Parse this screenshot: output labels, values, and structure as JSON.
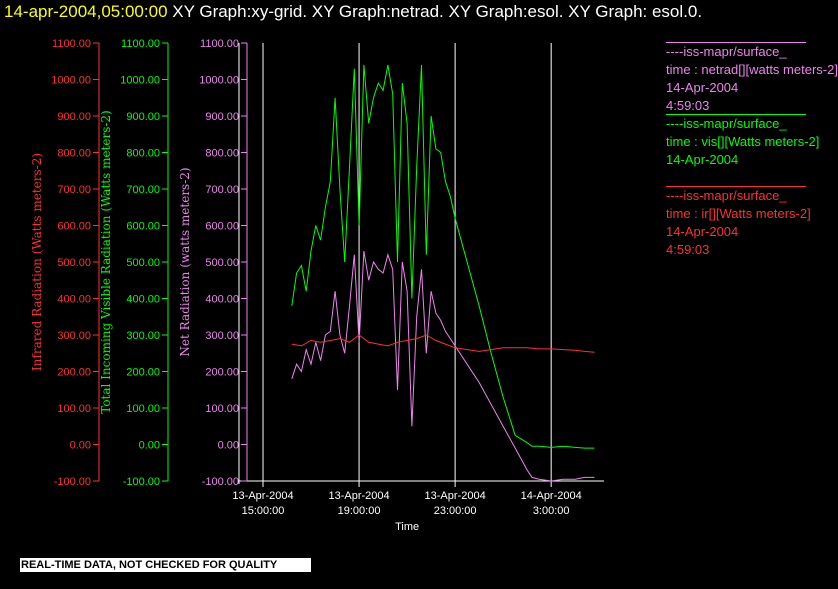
{
  "title": {
    "timestamp": "14-apr-2004,05:00:00",
    "text": "  XY Graph:xy-grid.  XY Graph:netrad.  XY Graph:esol.  XY Graph: esol.0."
  },
  "notice": "REAL-TIME DATA, NOT CHECKED FOR QUALITY",
  "legend": [
    {
      "color": "#ee82ee",
      "lines": [
        "----iss-mapr/surface_",
        "time : netrad[][watts meters-2]",
        "14-Apr-2004",
        "4:59:03"
      ]
    },
    {
      "color": "#00ff00",
      "lines": [
        "----iss-mapr/surface_",
        "time : vis[][Watts meters-2]",
        "14-Apr-2004"
      ]
    },
    {
      "color": "#ff3030",
      "lines": [
        "----iss-mapr/surface_",
        "time : ir[][Watts meters-2]",
        "14-Apr-2004",
        "4:59:03"
      ]
    }
  ],
  "chart_data": {
    "type": "line",
    "xlabel": "Time",
    "x_ticks": [
      {
        "t": 15,
        "d": "13-Apr-2004",
        "h": "15:00:00"
      },
      {
        "t": 19,
        "d": "13-Apr-2004",
        "h": "19:00:00"
      },
      {
        "t": 23,
        "d": "13-Apr-2004",
        "h": "23:00:00"
      },
      {
        "t": 27,
        "d": "14-Apr-2004",
        "h": "3:00:00"
      }
    ],
    "xlim": [
      14.0,
      29.2
    ],
    "ylim": [
      -100,
      1100
    ],
    "y_ticks": [
      "-100.00",
      "0.00",
      "100.00",
      "200.00",
      "300.00",
      "400.00",
      "500.00",
      "600.00",
      "700.00",
      "800.00",
      "900.00",
      "1000.00",
      "1100.00"
    ],
    "grid": "vertical",
    "axes": [
      {
        "label": "Infrared Radiation (Watts meters-2)",
        "color": "#ff3030"
      },
      {
        "label": "Total Incoming Visible Radiation (Watts meters-2)",
        "color": "#00ff00"
      },
      {
        "label": "Net Radiation (watts meters-2)",
        "color": "#ee82ee"
      }
    ],
    "series": [
      {
        "name": "vis",
        "color": "#00ff00",
        "x": [
          16.2,
          16.4,
          16.6,
          16.8,
          17.0,
          17.2,
          17.4,
          17.6,
          17.8,
          18.0,
          18.2,
          18.4,
          18.6,
          18.8,
          19.0,
          19.2,
          19.4,
          19.6,
          19.8,
          20.0,
          20.2,
          20.4,
          20.6,
          20.8,
          21.0,
          21.2,
          21.4,
          21.6,
          21.8,
          22.0,
          22.2,
          22.4,
          22.6,
          22.8,
          23.0,
          23.5,
          24.0,
          24.5,
          25.0,
          25.5,
          26.0,
          26.2,
          26.5,
          27.0,
          27.5,
          28.0,
          28.4,
          28.8
        ],
        "y": [
          380,
          470,
          490,
          420,
          530,
          600,
          560,
          650,
          720,
          950,
          700,
          500,
          760,
          1030,
          600,
          1040,
          880,
          950,
          990,
          970,
          1040,
          960,
          500,
          990,
          880,
          400,
          760,
          1040,
          520,
          900,
          810,
          800,
          720,
          680,
          620,
          500,
          380,
          250,
          130,
          25,
          5,
          -5,
          -5,
          -8,
          -5,
          -8,
          -10,
          -10
        ]
      },
      {
        "name": "netrad",
        "color": "#ee82ee",
        "x": [
          16.2,
          16.4,
          16.6,
          16.8,
          17.0,
          17.2,
          17.4,
          17.6,
          17.8,
          18.0,
          18.2,
          18.4,
          18.6,
          18.8,
          19.0,
          19.2,
          19.4,
          19.6,
          19.8,
          20.0,
          20.2,
          20.4,
          20.6,
          20.8,
          21.0,
          21.2,
          21.4,
          21.6,
          21.8,
          22.0,
          22.2,
          22.4,
          22.6,
          22.8,
          23.0,
          23.5,
          24.0,
          24.5,
          25.0,
          25.5,
          26.0,
          26.2,
          26.5,
          27.0,
          27.5,
          28.0,
          28.4,
          28.8
        ],
        "y": [
          180,
          220,
          200,
          260,
          220,
          280,
          230,
          300,
          310,
          420,
          300,
          250,
          380,
          520,
          280,
          530,
          450,
          500,
          480,
          470,
          520,
          480,
          150,
          500,
          420,
          50,
          350,
          480,
          250,
          420,
          360,
          340,
          310,
          290,
          270,
          220,
          170,
          110,
          50,
          -10,
          -70,
          -90,
          -95,
          -100,
          -95,
          -95,
          -90,
          -90
        ]
      },
      {
        "name": "ir",
        "color": "#ff3030",
        "x": [
          16.2,
          16.6,
          17.0,
          17.4,
          17.8,
          18.2,
          18.6,
          19.0,
          19.4,
          19.8,
          20.2,
          20.6,
          21.0,
          21.4,
          21.8,
          22.2,
          22.6,
          23.0,
          23.5,
          24.0,
          24.5,
          25.0,
          25.5,
          26.0,
          26.5,
          27.0,
          27.5,
          28.0,
          28.4,
          28.8
        ],
        "y": [
          275,
          270,
          285,
          280,
          285,
          290,
          280,
          300,
          280,
          275,
          270,
          280,
          285,
          290,
          300,
          285,
          275,
          265,
          260,
          255,
          260,
          265,
          265,
          265,
          262,
          262,
          260,
          258,
          255,
          253
        ]
      }
    ]
  }
}
